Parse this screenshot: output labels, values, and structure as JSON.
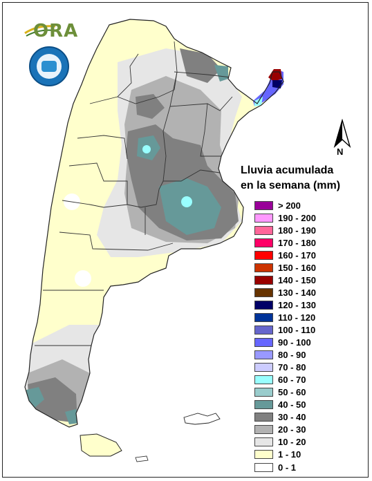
{
  "logo": {
    "text": "ORA",
    "name": "ora-logo"
  },
  "seal": {
    "name": "servicio-meteorologico-nacional-seal"
  },
  "north_arrow": {
    "label": "N"
  },
  "legend": {
    "title_line1": "Lluvia acumulada",
    "title_line2": "en la semana (mm)",
    "items": [
      {
        "label": "> 200",
        "color": "#990099"
      },
      {
        "label": "190 - 200",
        "color": "#ff99ff"
      },
      {
        "label": "180 - 190",
        "color": "#ff6699"
      },
      {
        "label": "170 - 180",
        "color": "#ff0066"
      },
      {
        "label": "160 - 170",
        "color": "#ff0000"
      },
      {
        "label": "150 - 160",
        "color": "#cc3300"
      },
      {
        "label": "140 - 150",
        "color": "#990000"
      },
      {
        "label": "130 - 140",
        "color": "#663300"
      },
      {
        "label": "120 - 130",
        "color": "#000066"
      },
      {
        "label": "110 - 120",
        "color": "#003399"
      },
      {
        "label": "100 - 110",
        "color": "#6666cc"
      },
      {
        "label": "90 - 100",
        "color": "#6666ff"
      },
      {
        "label": "80 - 90",
        "color": "#9999ff"
      },
      {
        "label": "70 - 80",
        "color": "#ccccff"
      },
      {
        "label": "60 - 70",
        "color": "#99ffff"
      },
      {
        "label": "50 - 60",
        "color": "#99cccc"
      },
      {
        "label": "40 - 50",
        "color": "#669999"
      },
      {
        "label": "30 - 40",
        "color": "#808080"
      },
      {
        "label": "20 - 30",
        "color": "#b2b2b2"
      },
      {
        "label": "10 - 20",
        "color": "#e6e6e6"
      },
      {
        "label": "1 - 10",
        "color": "#ffffcc"
      },
      {
        "label": "0 - 1",
        "color": "#ffffff"
      }
    ]
  }
}
